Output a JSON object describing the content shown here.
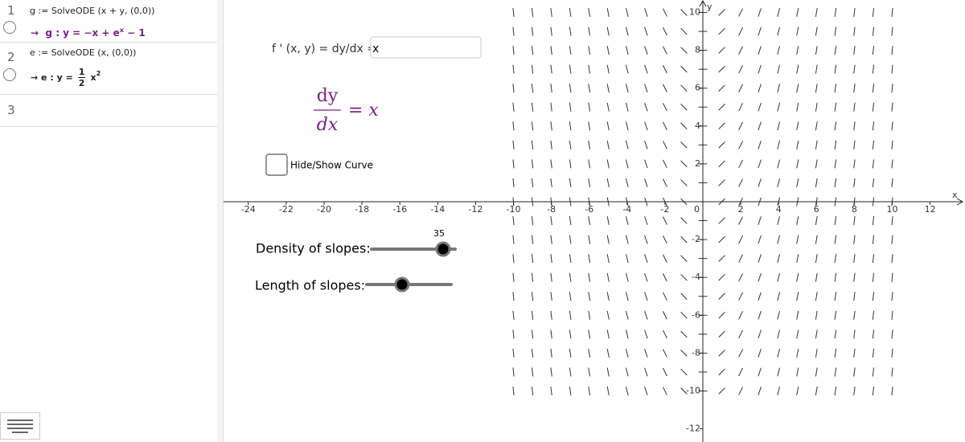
{
  "algebra": {
    "rows": [
      {
        "number": "1",
        "input": "g := SolveODE (x + y, (0,0))",
        "output": {
          "name": "g : y = −x + e",
          "sup": "x",
          "rest": "− 1"
        }
      },
      {
        "number": "2",
        "input": "e := SolveODE (x, (0,0))",
        "output": {
          "name": "e : y =",
          "num": "1",
          "den": "2",
          "var": "x",
          "sup": "2"
        }
      },
      {
        "number": "3"
      }
    ]
  },
  "graphics": {
    "input_label": "f ' (x, y) = dy/dx =",
    "input_value": "x",
    "formula": {
      "num": "dy",
      "den": "dx",
      "rhs": "= x"
    },
    "checkbox_label": "Hide/Show Curve",
    "sliders": [
      {
        "label": "Density of slopes:",
        "value": 35
      },
      {
        "label": "Length of slopes:"
      }
    ],
    "x_axis_label": "x",
    "y_axis_label": "y",
    "origin_label": "0",
    "xticks": [
      -24,
      -22,
      -20,
      -18,
      -16,
      -14,
      -12,
      -10,
      -8,
      -6,
      -4,
      -2,
      2,
      4,
      6,
      8,
      10,
      12
    ],
    "yticks": [
      10,
      8,
      6,
      4,
      2,
      -2,
      -4,
      -6,
      -8,
      -10,
      -12
    ]
  }
}
